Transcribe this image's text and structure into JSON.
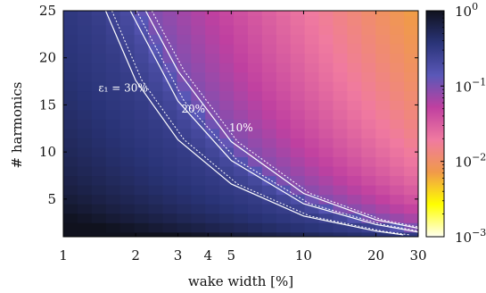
{
  "chart_data": {
    "type": "heatmap",
    "title": "",
    "xlabel": "wake width [%]",
    "ylabel": "# harmonics",
    "x_scale": "log",
    "xlim": [
      1,
      30
    ],
    "ylim": [
      1,
      25
    ],
    "x_ticks": [
      1,
      2,
      3,
      4,
      5,
      10,
      20,
      30
    ],
    "x_tick_labels": [
      "1",
      "2",
      "3",
      "4",
      "5",
      "10",
      "20",
      "30"
    ],
    "y_ticks": [
      5,
      10,
      15,
      20,
      25
    ],
    "y_tick_labels": [
      "5",
      "10",
      "15",
      "20",
      "25"
    ],
    "grid": false,
    "colorbar": {
      "scale": "log",
      "range": [
        0.001,
        1
      ],
      "ticks": [
        {
          "value": 1,
          "base": "10",
          "exp": "0"
        },
        {
          "value": 0.1,
          "base": "10",
          "exp": "−1"
        },
        {
          "value": 0.01,
          "base": "10",
          "exp": "−2"
        },
        {
          "value": 0.001,
          "base": "10",
          "exp": "−3"
        }
      ],
      "colormap": [
        "#fffff0",
        "#ffff00",
        "#f09a4a",
        "#f07aa0",
        "#c040a0",
        "#5a58b8",
        "#2a3478",
        "#10121e"
      ]
    },
    "contours": [
      {
        "label": "ε₁ = 30%",
        "level": 0.3,
        "x_at_y": [
          [
            1.5,
            25
          ],
          [
            2,
            17.6
          ],
          [
            3,
            11.3
          ],
          [
            5,
            6.6
          ],
          [
            10,
            3.2
          ],
          [
            20,
            1.6
          ],
          [
            26,
            1.2
          ]
        ]
      },
      {
        "label": "20%",
        "level": 0.2,
        "x_at_y": [
          [
            1.9,
            25
          ],
          [
            3,
            15.4
          ],
          [
            5,
            9.1
          ],
          [
            10,
            4.5
          ],
          [
            20,
            2.3
          ],
          [
            30,
            1.5
          ]
        ]
      },
      {
        "label": "10%",
        "level": 0.1,
        "x_at_y": [
          [
            2.2,
            25
          ],
          [
            3,
            18.6
          ],
          [
            5,
            11.1
          ],
          [
            10,
            5.6
          ],
          [
            20,
            2.8
          ],
          [
            30,
            1.9
          ]
        ]
      }
    ]
  }
}
